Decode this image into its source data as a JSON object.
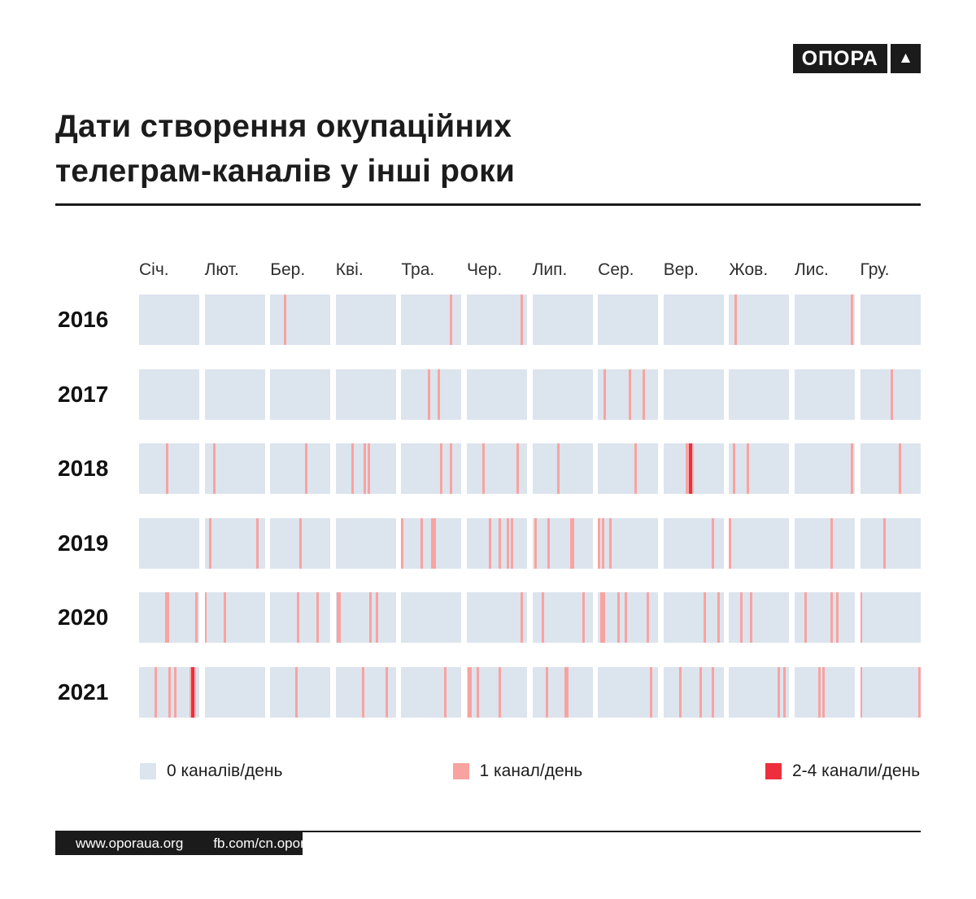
{
  "logo": {
    "text": "ОПОРА",
    "triangle": "▲"
  },
  "title": {
    "line1": "Дати створення окупаційних",
    "line2": "телеграм-каналів у інші роки"
  },
  "months": [
    "Січ.",
    "Лют.",
    "Бер.",
    "Кві.",
    "Тра.",
    "Чер.",
    "Лип.",
    "Сер.",
    "Вер.",
    "Жов.",
    "Лис.",
    "Гру."
  ],
  "legend": [
    {
      "label": "0 каналів/день",
      "color": "#dce4ee"
    },
    {
      "label": "1 канал/день",
      "color": "#f9a3a0"
    },
    {
      "label": "2-4 канали/день",
      "color": "#ee2e3c"
    }
  ],
  "footer": {
    "website": "www.oporaua.org",
    "facebook": "fb.com/cn.opora"
  },
  "colors": {
    "ink": "#1b1b1b",
    "cell_bg": "#dce4ee",
    "one_channel": "#f9a3a0",
    "multi_channel": "#ee2e3c",
    "page_bg": "#ffffff"
  },
  "chart_data": {
    "type": "heatmap",
    "title": "Дати створення окупаційних телеграм-каналів у інші роки",
    "categories": [
      "Січ.",
      "Лют.",
      "Бер.",
      "Кві.",
      "Тра.",
      "Чер.",
      "Лип.",
      "Сер.",
      "Вер.",
      "Жов.",
      "Лис.",
      "Гру."
    ],
    "month_days": [
      31,
      28,
      31,
      30,
      31,
      30,
      31,
      31,
      30,
      31,
      30,
      31
    ],
    "levels": {
      "0": "0 каналів/день",
      "1": "1 канал/день",
      "2": "2-4 канали/день"
    },
    "legend_position": "bottom",
    "rows": [
      {
        "year": "2016",
        "events": [
          {
            "m": 3,
            "d": 8,
            "level": 1
          },
          {
            "m": 5,
            "d": 26,
            "level": 1
          },
          {
            "m": 6,
            "d": 28,
            "level": 1
          },
          {
            "m": 10,
            "d": 4,
            "level": 1
          },
          {
            "m": 11,
            "d": 29,
            "level": 1
          }
        ]
      },
      {
        "year": "2017",
        "events": [
          {
            "m": 5,
            "d": 15,
            "level": 1
          },
          {
            "m": 5,
            "d": 20,
            "level": 1
          },
          {
            "m": 8,
            "d": 4,
            "level": 1
          },
          {
            "m": 8,
            "d": 17,
            "level": 1
          },
          {
            "m": 8,
            "d": 24,
            "level": 1
          },
          {
            "m": 12,
            "d": 17,
            "level": 1
          }
        ]
      },
      {
        "year": "2018",
        "events": [
          {
            "m": 1,
            "d": 15,
            "level": 1
          },
          {
            "m": 2,
            "d": 5,
            "level": 1
          },
          {
            "m": 3,
            "d": 19,
            "level": 1
          },
          {
            "m": 4,
            "d": 9,
            "level": 1
          },
          {
            "m": 4,
            "d": 15,
            "level": 1
          },
          {
            "m": 4,
            "d": 17,
            "level": 1
          },
          {
            "m": 5,
            "d": 21,
            "level": 1
          },
          {
            "m": 5,
            "d": 26,
            "level": 1
          },
          {
            "m": 6,
            "d": 9,
            "level": 1
          },
          {
            "m": 6,
            "d": 26,
            "level": 1
          },
          {
            "m": 7,
            "d": 14,
            "level": 1
          },
          {
            "m": 8,
            "d": 20,
            "level": 1
          },
          {
            "m": 9,
            "d": 12,
            "level": 1
          },
          {
            "m": 9,
            "d": 14,
            "level": 2
          },
          {
            "m": 10,
            "d": 3,
            "level": 1
          },
          {
            "m": 10,
            "d": 10,
            "level": 1
          },
          {
            "m": 11,
            "d": 29,
            "level": 1
          },
          {
            "m": 12,
            "d": 21,
            "level": 1
          }
        ]
      },
      {
        "year": "2019",
        "events": [
          {
            "m": 2,
            "d": 3,
            "level": 1
          },
          {
            "m": 2,
            "d": 25,
            "level": 1
          },
          {
            "m": 3,
            "d": 16,
            "level": 1
          },
          {
            "m": 5,
            "d": 1,
            "level": 1
          },
          {
            "m": 5,
            "d": 11,
            "level": 1
          },
          {
            "m": 5,
            "d": 17,
            "level": 1,
            "span": 2
          },
          {
            "m": 6,
            "d": 12,
            "level": 1
          },
          {
            "m": 6,
            "d": 17,
            "level": 1
          },
          {
            "m": 6,
            "d": 21,
            "level": 1
          },
          {
            "m": 6,
            "d": 23,
            "level": 1
          },
          {
            "m": 7,
            "d": 2,
            "level": 1
          },
          {
            "m": 7,
            "d": 9,
            "level": 1
          },
          {
            "m": 7,
            "d": 21,
            "level": 1,
            "span": 2
          },
          {
            "m": 8,
            "d": 1,
            "level": 1
          },
          {
            "m": 8,
            "d": 3,
            "level": 1
          },
          {
            "m": 8,
            "d": 7,
            "level": 1
          },
          {
            "m": 9,
            "d": 25,
            "level": 1
          },
          {
            "m": 10,
            "d": 1,
            "level": 1
          },
          {
            "m": 11,
            "d": 19,
            "level": 1
          },
          {
            "m": 12,
            "d": 13,
            "level": 1
          }
        ]
      },
      {
        "year": "2020",
        "events": [
          {
            "m": 1,
            "d": 15,
            "level": 1,
            "span": 2
          },
          {
            "m": 1,
            "d": 30,
            "level": 1
          },
          {
            "m": 2,
            "d": 1,
            "level": 1
          },
          {
            "m": 2,
            "d": 10,
            "level": 1
          },
          {
            "m": 3,
            "d": 15,
            "level": 1
          },
          {
            "m": 3,
            "d": 25,
            "level": 1
          },
          {
            "m": 4,
            "d": 2,
            "level": 1,
            "span": 2
          },
          {
            "m": 4,
            "d": 18,
            "level": 1
          },
          {
            "m": 4,
            "d": 21,
            "level": 1
          },
          {
            "m": 6,
            "d": 28,
            "level": 1
          },
          {
            "m": 7,
            "d": 6,
            "level": 1
          },
          {
            "m": 7,
            "d": 27,
            "level": 1
          },
          {
            "m": 8,
            "d": 3,
            "level": 1,
            "span": 2
          },
          {
            "m": 8,
            "d": 11,
            "level": 1
          },
          {
            "m": 8,
            "d": 15,
            "level": 1
          },
          {
            "m": 8,
            "d": 26,
            "level": 1
          },
          {
            "m": 9,
            "d": 21,
            "level": 1
          },
          {
            "m": 9,
            "d": 28,
            "level": 1
          },
          {
            "m": 10,
            "d": 7,
            "level": 1
          },
          {
            "m": 10,
            "d": 12,
            "level": 1
          },
          {
            "m": 11,
            "d": 6,
            "level": 1
          },
          {
            "m": 11,
            "d": 19,
            "level": 1
          },
          {
            "m": 11,
            "d": 22,
            "level": 1
          },
          {
            "m": 12,
            "d": 1,
            "level": 1
          }
        ]
      },
      {
        "year": "2021",
        "events": [
          {
            "m": 1,
            "d": 9,
            "level": 1
          },
          {
            "m": 1,
            "d": 16,
            "level": 1
          },
          {
            "m": 1,
            "d": 19,
            "level": 1
          },
          {
            "m": 1,
            "d": 28,
            "level": 2
          },
          {
            "m": 3,
            "d": 14,
            "level": 1
          },
          {
            "m": 4,
            "d": 14,
            "level": 1
          },
          {
            "m": 4,
            "d": 26,
            "level": 1
          },
          {
            "m": 5,
            "d": 23,
            "level": 1
          },
          {
            "m": 6,
            "d": 2,
            "level": 1,
            "span": 2
          },
          {
            "m": 6,
            "d": 6,
            "level": 1
          },
          {
            "m": 6,
            "d": 17,
            "level": 1
          },
          {
            "m": 7,
            "d": 8,
            "level": 1
          },
          {
            "m": 7,
            "d": 18,
            "level": 1,
            "span": 2
          },
          {
            "m": 8,
            "d": 28,
            "level": 1
          },
          {
            "m": 9,
            "d": 9,
            "level": 1
          },
          {
            "m": 9,
            "d": 19,
            "level": 1
          },
          {
            "m": 9,
            "d": 25,
            "level": 1
          },
          {
            "m": 10,
            "d": 26,
            "level": 1
          },
          {
            "m": 10,
            "d": 29,
            "level": 1
          },
          {
            "m": 11,
            "d": 13,
            "level": 1
          },
          {
            "m": 11,
            "d": 15,
            "level": 1
          },
          {
            "m": 12,
            "d": 1,
            "level": 1
          },
          {
            "m": 12,
            "d": 31,
            "level": 1
          }
        ]
      }
    ]
  }
}
